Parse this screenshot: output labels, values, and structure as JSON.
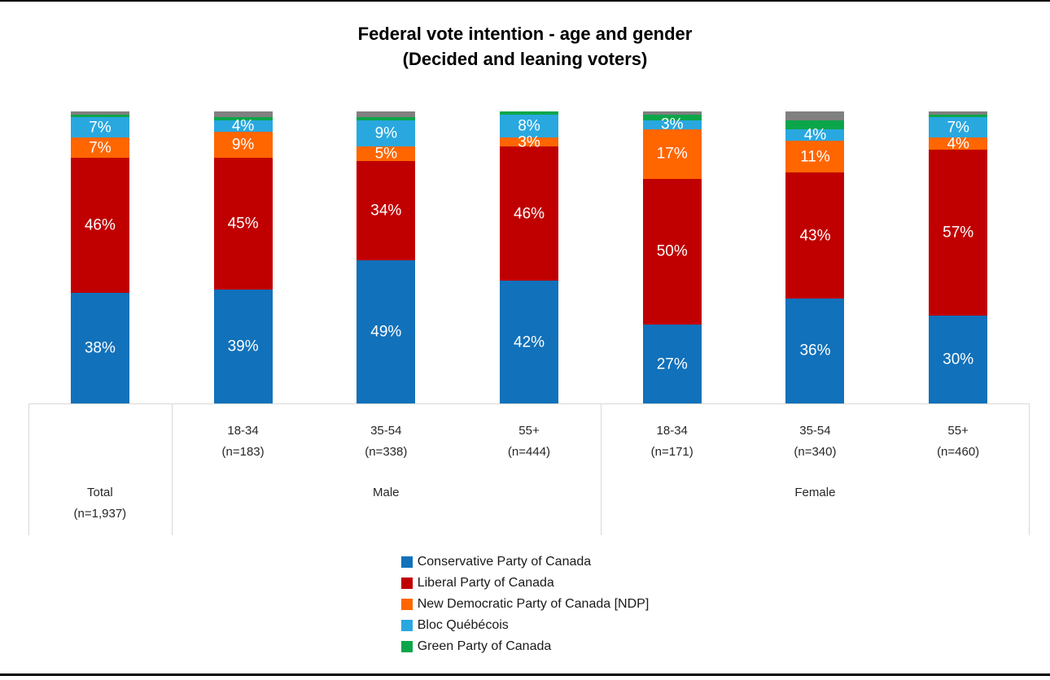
{
  "title": {
    "line1": "Federal vote intention - age and gender",
    "line2": "(Decided and leaning voters)"
  },
  "chart_data": {
    "type": "bar",
    "stacked": true,
    "orientation": "vertical",
    "unit": "%",
    "ylim": [
      0,
      100
    ],
    "grid": false,
    "legend_position": "bottom-center",
    "data_label_min_value": 3,
    "categories": [
      "Total",
      "Male 18-34",
      "Male 35-54",
      "Male 55+",
      "Female 18-34",
      "Female 35-54",
      "Female 55+"
    ],
    "sample_sizes": [
      "n=1,937",
      "n=183",
      "n=338",
      "n=444",
      "n=171",
      "n=340",
      "n=460"
    ],
    "series": [
      {
        "name": "Conservative Party of Canada",
        "slug": "conservative",
        "color": "#1171BA",
        "in_legend": true,
        "data_labels": true,
        "values": [
          38,
          39,
          49,
          42,
          27,
          36,
          30
        ]
      },
      {
        "name": "Liberal Party of Canada",
        "slug": "liberal",
        "color": "#C00000",
        "in_legend": true,
        "data_labels": true,
        "values": [
          46,
          45,
          34,
          46,
          50,
          43,
          57
        ]
      },
      {
        "name": "New Democratic Party of Canada [NDP]",
        "slug": "ndp",
        "color": "#FF6600",
        "in_legend": true,
        "data_labels": true,
        "values": [
          7,
          9,
          5,
          3,
          17,
          11,
          4
        ]
      },
      {
        "name": "Bloc Québécois",
        "slug": "bloc",
        "color": "#29A8E0",
        "in_legend": true,
        "data_labels": true,
        "values": [
          7,
          4,
          9,
          8,
          3,
          4,
          7
        ]
      },
      {
        "name": "Green Party of Canada",
        "slug": "green",
        "color": "#0BA64A",
        "in_legend": true,
        "data_labels": false,
        "values": [
          1,
          1,
          1,
          1,
          2,
          3,
          1
        ]
      },
      {
        "name": "(unlabeled)",
        "slug": "other-gray",
        "color": "#808080",
        "in_legend": false,
        "data_labels": false,
        "values": [
          1,
          2,
          2,
          0,
          1,
          3,
          1
        ]
      }
    ]
  },
  "axis": {
    "age_labels": [
      {
        "age": "",
        "n": ""
      },
      {
        "age": "18-34",
        "n": "(n=183)"
      },
      {
        "age": "35-54",
        "n": "(n=338)"
      },
      {
        "age": "55+",
        "n": "(n=444)"
      },
      {
        "age": "18-34",
        "n": "(n=171)"
      },
      {
        "age": "35-54",
        "n": "(n=340)"
      },
      {
        "age": "55+",
        "n": "(n=460)"
      }
    ],
    "groups": [
      {
        "label": "Total",
        "sublabel": "(n=1,937)",
        "span": 1
      },
      {
        "label": "Male",
        "sublabel": "",
        "span": 3
      },
      {
        "label": "Female",
        "sublabel": "",
        "span": 3
      }
    ]
  },
  "colors": {
    "axis_line": "#D9D9D9",
    "frame_border": "#000000",
    "data_label_text": "#FFFFFF",
    "category_text": "#262626"
  }
}
